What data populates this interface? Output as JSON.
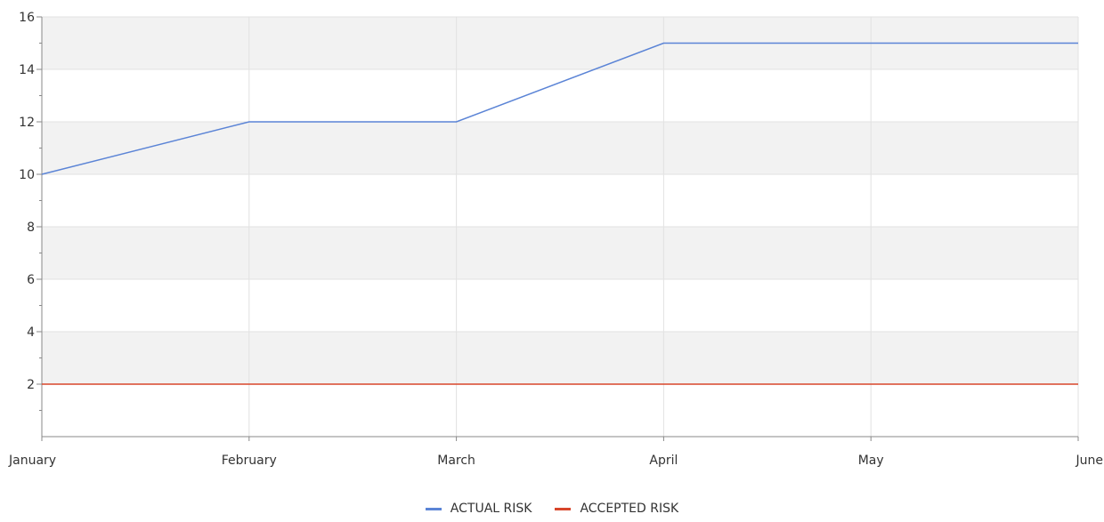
{
  "chart_data": {
    "type": "line",
    "categories": [
      "January",
      "February",
      "March",
      "April",
      "May",
      "June"
    ],
    "series": [
      {
        "name": "ACTUAL RISK",
        "values": [
          10,
          12,
          12,
          15,
          15,
          15
        ],
        "color": "#5b84d6"
      },
      {
        "name": "ACCEPTED RISK",
        "values": [
          2,
          2,
          2,
          2,
          2,
          2
        ],
        "color": "#d8462b"
      }
    ],
    "ylim": [
      0,
      16
    ],
    "yticks": [
      "2",
      "4",
      "6",
      "8",
      "10",
      "12",
      "14",
      "16"
    ],
    "grid": true,
    "legend_position": "bottom-center",
    "title": "",
    "xlabel": "",
    "ylabel": ""
  }
}
